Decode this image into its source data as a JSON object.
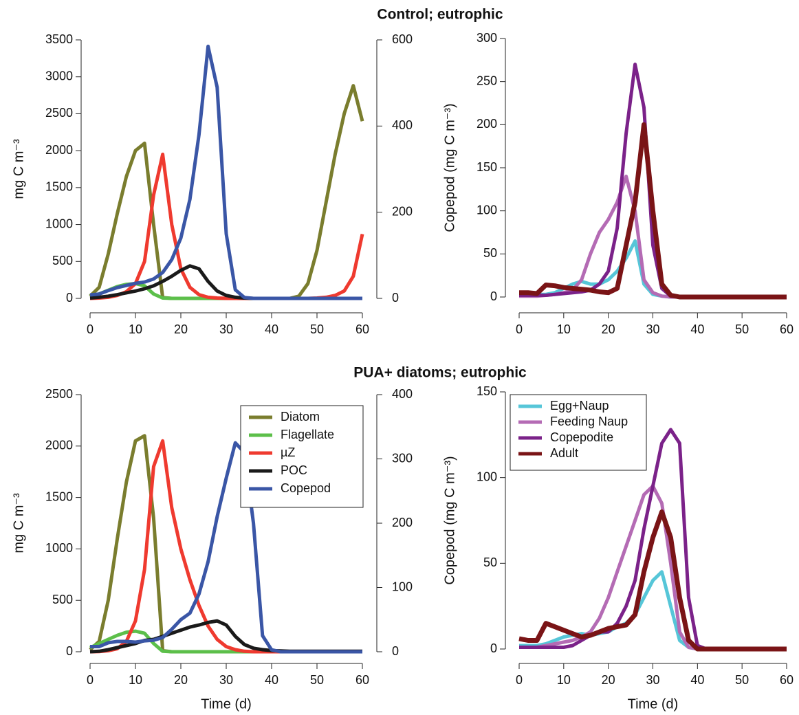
{
  "chart_data": [
    {
      "type": "line",
      "title": "Control; eutrophic",
      "ylabel": "mg C m⁻³",
      "x": [
        0,
        2,
        4,
        6,
        8,
        10,
        12,
        14,
        16,
        18,
        20,
        22,
        24,
        26,
        28,
        30,
        32,
        34,
        36,
        38,
        40,
        42,
        44,
        46,
        48,
        50,
        52,
        54,
        56,
        58,
        60
      ],
      "xlim": [
        0,
        60
      ],
      "xticks": [
        0,
        10,
        20,
        30,
        40,
        50,
        60
      ],
      "ylim": [
        0,
        3500
      ],
      "yticks": [
        0,
        500,
        1000,
        1500,
        2000,
        2500,
        3000,
        3500
      ],
      "y2lim": [
        0,
        600
      ],
      "y2ticks": [
        0,
        200,
        400,
        600
      ],
      "series": [
        {
          "color": "#7a7d2e",
          "values": [
            30,
            150,
            600,
            1150,
            1650,
            2000,
            2100,
            1000,
            10,
            0,
            0,
            0,
            0,
            0,
            0,
            0,
            0,
            0,
            0,
            0,
            0,
            0,
            0,
            30,
            200,
            650,
            1300,
            1950,
            2500,
            2880,
            2400
          ]
        },
        {
          "color": "#5cbf4a",
          "values": [
            30,
            60,
            110,
            160,
            190,
            200,
            170,
            60,
            5,
            0,
            0,
            0,
            0,
            0,
            0,
            0,
            0,
            0,
            0,
            0,
            0,
            0,
            0,
            0,
            0,
            0,
            0,
            0,
            0,
            0,
            0
          ]
        },
        {
          "color": "#ef3a2f",
          "values": [
            0,
            5,
            15,
            40,
            90,
            200,
            500,
            1400,
            1950,
            1000,
            400,
            150,
            50,
            15,
            5,
            0,
            0,
            0,
            0,
            0,
            0,
            0,
            0,
            0,
            0,
            5,
            15,
            40,
            100,
            300,
            870
          ]
        },
        {
          "color": "#1a1a1a",
          "values": [
            5,
            15,
            30,
            50,
            75,
            100,
            130,
            170,
            230,
            300,
            380,
            440,
            400,
            230,
            100,
            40,
            15,
            5,
            0,
            0,
            0,
            0,
            0,
            0,
            0,
            0,
            0,
            0,
            0,
            0,
            0
          ]
        },
        {
          "color": "#3a56a6",
          "axis": "y2",
          "values": [
            8,
            10,
            18,
            25,
            30,
            35,
            38,
            45,
            60,
            90,
            140,
            230,
            380,
            585,
            490,
            150,
            20,
            2,
            0,
            0,
            0,
            0,
            0,
            0,
            0,
            0,
            0,
            0,
            0,
            0,
            0
          ]
        }
      ]
    },
    {
      "type": "line",
      "ylabel": "Copepod (mg C m⁻³)",
      "x": [
        0,
        2,
        4,
        6,
        8,
        10,
        12,
        14,
        16,
        18,
        20,
        22,
        24,
        26,
        28,
        30,
        32,
        34,
        36,
        38,
        40,
        42,
        44,
        46,
        48,
        50,
        52,
        54,
        56,
        58,
        60
      ],
      "xlim": [
        0,
        60
      ],
      "xticks": [
        0,
        10,
        20,
        30,
        40,
        50,
        60
      ],
      "ylim": [
        0,
        300
      ],
      "yticks": [
        0,
        50,
        100,
        150,
        200,
        250,
        300
      ],
      "series": [
        {
          "color": "#56c6d8",
          "values": [
            3,
            3,
            3,
            3,
            5,
            10,
            15,
            18,
            15,
            15,
            20,
            30,
            45,
            65,
            15,
            3,
            1,
            0,
            0,
            0,
            0,
            0,
            0,
            0,
            0,
            0,
            0,
            0,
            0,
            0,
            0
          ]
        },
        {
          "color": "#b46bb4",
          "values": [
            1,
            1,
            1,
            2,
            3,
            5,
            8,
            20,
            50,
            75,
            90,
            110,
            140,
            100,
            20,
            5,
            1,
            0,
            0,
            0,
            0,
            0,
            0,
            0,
            0,
            0,
            0,
            0,
            0,
            0,
            0
          ]
        },
        {
          "color": "#7b2289",
          "values": [
            2,
            2,
            2,
            2,
            3,
            4,
            5,
            6,
            8,
            15,
            30,
            80,
            190,
            270,
            220,
            60,
            10,
            1,
            0,
            0,
            0,
            0,
            0,
            0,
            0,
            0,
            0,
            0,
            0,
            0,
            0
          ]
        },
        {
          "color": "#7a1416",
          "values": [
            5,
            5,
            4,
            14,
            13,
            11,
            10,
            9,
            8,
            6,
            5,
            10,
            60,
            110,
            200,
            100,
            15,
            2,
            0,
            0,
            0,
            0,
            0,
            0,
            0,
            0,
            0,
            0,
            0,
            0,
            0
          ]
        }
      ]
    },
    {
      "type": "line",
      "title": "PUA+ diatoms; eutrophic",
      "ylabel": "mg C m⁻³",
      "xlabel": "Time (d)",
      "legend": "upper right",
      "x": [
        0,
        2,
        4,
        6,
        8,
        10,
        12,
        14,
        16,
        18,
        20,
        22,
        24,
        26,
        28,
        30,
        32,
        34,
        36,
        38,
        40,
        42,
        44,
        46,
        48,
        50,
        52,
        54,
        56,
        58,
        60
      ],
      "xlim": [
        0,
        60
      ],
      "xticks": [
        0,
        10,
        20,
        30,
        40,
        50,
        60
      ],
      "ylim": [
        0,
        2500
      ],
      "yticks": [
        0,
        500,
        1000,
        1500,
        2000,
        2500
      ],
      "y2lim": [
        0,
        400
      ],
      "y2ticks": [
        0,
        100,
        200,
        300,
        400
      ],
      "series": [
        {
          "name": "Diatom",
          "color": "#7a7d2e",
          "values": [
            20,
            100,
            500,
            1100,
            1650,
            2050,
            2100,
            1300,
            10,
            0,
            0,
            0,
            0,
            0,
            0,
            0,
            0,
            0,
            0,
            0,
            0,
            0,
            0,
            0,
            0,
            0,
            0,
            0,
            0,
            0,
            0
          ]
        },
        {
          "name": "Flagellate",
          "color": "#5cbf4a",
          "values": [
            40,
            80,
            120,
            160,
            190,
            200,
            180,
            80,
            5,
            0,
            0,
            0,
            0,
            0,
            0,
            0,
            0,
            0,
            0,
            0,
            0,
            0,
            0,
            0,
            0,
            0,
            0,
            0,
            0,
            0,
            0
          ]
        },
        {
          "name": "µZ",
          "color": "#ef3a2f",
          "values": [
            0,
            2,
            10,
            30,
            100,
            300,
            800,
            1800,
            2050,
            1400,
            1000,
            700,
            450,
            250,
            120,
            50,
            20,
            5,
            0,
            0,
            0,
            0,
            0,
            0,
            0,
            0,
            0,
            0,
            0,
            0,
            0
          ]
        },
        {
          "name": "POC",
          "color": "#1a1a1a",
          "values": [
            0,
            5,
            20,
            40,
            60,
            80,
            110,
            120,
            150,
            180,
            210,
            240,
            260,
            285,
            300,
            260,
            150,
            70,
            35,
            20,
            12,
            8,
            5,
            5,
            5,
            5,
            5,
            5,
            5,
            5,
            5
          ]
        },
        {
          "name": "Copepod",
          "color": "#3a56a6",
          "axis": "y2",
          "values": [
            8,
            8,
            14,
            16,
            16,
            15,
            17,
            18,
            22,
            35,
            50,
            60,
            90,
            140,
            210,
            270,
            325,
            310,
            200,
            25,
            3,
            0,
            0,
            0,
            0,
            0,
            0,
            0,
            0,
            0,
            0
          ]
        }
      ]
    },
    {
      "type": "line",
      "ylabel": "Copepod (mg C m⁻³)",
      "xlabel": "Time (d)",
      "legend": "upper left",
      "x": [
        0,
        2,
        4,
        6,
        8,
        10,
        12,
        14,
        16,
        18,
        20,
        22,
        24,
        26,
        28,
        30,
        32,
        34,
        36,
        38,
        40,
        42,
        44,
        46,
        48,
        50,
        52,
        54,
        56,
        58,
        60
      ],
      "xlim": [
        0,
        60
      ],
      "xticks": [
        0,
        10,
        20,
        30,
        40,
        50,
        60
      ],
      "ylim": [
        0,
        150
      ],
      "yticks": [
        0,
        50,
        100,
        150
      ],
      "series": [
        {
          "name": "Egg+Naup",
          "color": "#56c6d8",
          "values": [
            2,
            2,
            2,
            3,
            5,
            7,
            8,
            9,
            8,
            9,
            10,
            13,
            15,
            20,
            30,
            40,
            45,
            25,
            5,
            1,
            0,
            0,
            0,
            0,
            0,
            0,
            0,
            0,
            0,
            0,
            0
          ]
        },
        {
          "name": "Feeding Naup",
          "color": "#b46bb4",
          "values": [
            1,
            1,
            1,
            2,
            3,
            4,
            5,
            7,
            10,
            18,
            30,
            45,
            60,
            75,
            90,
            95,
            85,
            50,
            10,
            1,
            0,
            0,
            0,
            0,
            0,
            0,
            0,
            0,
            0,
            0,
            0
          ]
        },
        {
          "name": "Copepodite",
          "color": "#7b2289",
          "values": [
            1,
            1,
            1,
            1,
            1,
            1,
            2,
            5,
            8,
            10,
            10,
            15,
            25,
            40,
            70,
            95,
            120,
            128,
            120,
            30,
            2,
            0,
            0,
            0,
            0,
            0,
            0,
            0,
            0,
            0,
            0
          ]
        },
        {
          "name": "Adult",
          "color": "#7a1416",
          "values": [
            6,
            5,
            5,
            15,
            13,
            11,
            9,
            7,
            8,
            10,
            12,
            13,
            14,
            20,
            45,
            65,
            80,
            65,
            30,
            5,
            0,
            0,
            0,
            0,
            0,
            0,
            0,
            0,
            0,
            0,
            0
          ]
        }
      ]
    }
  ]
}
